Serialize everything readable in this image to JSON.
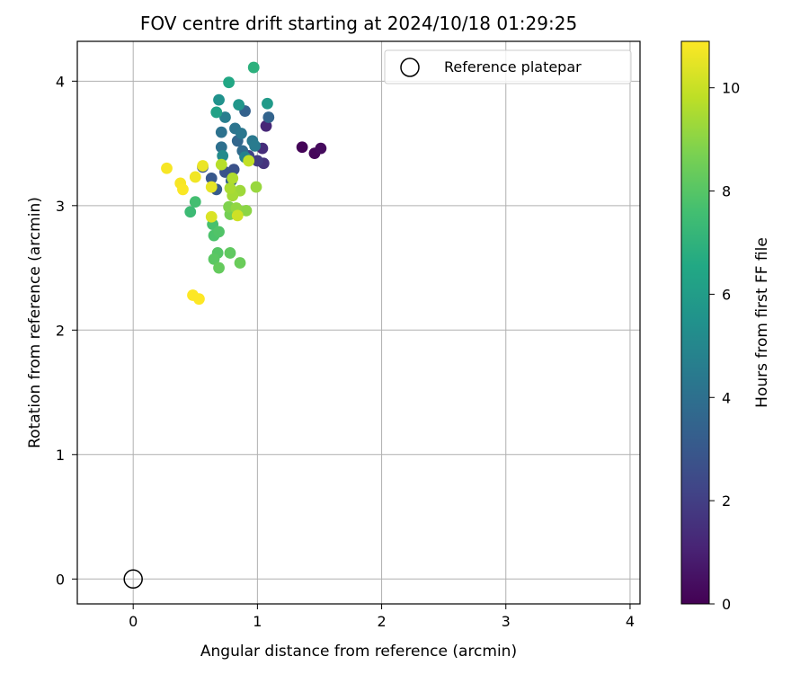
{
  "chart_data": {
    "type": "scatter",
    "title": "FOV centre drift starting at 2024/10/18 01:29:25",
    "xlabel": "Angular distance from reference (arcmin)",
    "ylabel": "Rotation from reference (arcmin)",
    "xlim": [
      -0.45,
      4.08
    ],
    "ylim": [
      -0.2,
      4.32
    ],
    "xticks": [
      0,
      1,
      2,
      3,
      4
    ],
    "yticks": [
      0,
      1,
      2,
      3,
      4
    ],
    "grid": true,
    "legend": {
      "placement": "top-right",
      "entries": [
        "Reference platepar"
      ]
    },
    "reference_point": {
      "x": 0,
      "y": 0,
      "marker": "open-circle"
    },
    "colorbar": {
      "label": "Hours from first FF file",
      "colormap": "viridis",
      "range": [
        0,
        10.9
      ],
      "ticks": [
        0,
        2,
        4,
        6,
        8,
        10
      ]
    },
    "series": [
      {
        "points": [
          {
            "x": 1.36,
            "y": 3.47,
            "t": 0.1
          },
          {
            "x": 1.46,
            "y": 3.42,
            "t": 0.2
          },
          {
            "x": 1.51,
            "y": 3.46,
            "t": 0.3
          },
          {
            "x": 1.07,
            "y": 3.64,
            "t": 1.2
          },
          {
            "x": 1.04,
            "y": 3.46,
            "t": 1.4
          },
          {
            "x": 1.05,
            "y": 3.34,
            "t": 1.6
          },
          {
            "x": 1.0,
            "y": 3.36,
            "t": 1.9
          },
          {
            "x": 0.93,
            "y": 3.4,
            "t": 2.2
          },
          {
            "x": 0.81,
            "y": 3.29,
            "t": 2.7
          },
          {
            "x": 0.74,
            "y": 3.27,
            "t": 2.8
          },
          {
            "x": 0.56,
            "y": 3.31,
            "t": 2.9
          },
          {
            "x": 0.63,
            "y": 3.22,
            "t": 3.0
          },
          {
            "x": 0.67,
            "y": 3.13,
            "t": 3.1
          },
          {
            "x": 0.79,
            "y": 3.2,
            "t": 3.3
          },
          {
            "x": 0.9,
            "y": 3.76,
            "t": 3.4
          },
          {
            "x": 1.09,
            "y": 3.71,
            "t": 3.5
          },
          {
            "x": 0.84,
            "y": 3.52,
            "t": 3.6
          },
          {
            "x": 0.88,
            "y": 3.44,
            "t": 3.8
          },
          {
            "x": 0.71,
            "y": 3.47,
            "t": 4.0
          },
          {
            "x": 0.71,
            "y": 3.59,
            "t": 4.1
          },
          {
            "x": 0.82,
            "y": 3.62,
            "t": 4.2
          },
          {
            "x": 0.87,
            "y": 3.58,
            "t": 4.3
          },
          {
            "x": 0.96,
            "y": 3.52,
            "t": 4.4
          },
          {
            "x": 0.98,
            "y": 3.48,
            "t": 4.5
          },
          {
            "x": 0.74,
            "y": 3.71,
            "t": 4.6
          },
          {
            "x": 0.9,
            "y": 3.39,
            "t": 4.8
          },
          {
            "x": 0.72,
            "y": 3.4,
            "t": 5.2
          },
          {
            "x": 0.69,
            "y": 3.85,
            "t": 5.5
          },
          {
            "x": 0.85,
            "y": 3.81,
            "t": 5.7
          },
          {
            "x": 1.08,
            "y": 3.82,
            "t": 5.9
          },
          {
            "x": 0.67,
            "y": 3.75,
            "t": 6.2
          },
          {
            "x": 0.77,
            "y": 3.99,
            "t": 6.5
          },
          {
            "x": 0.97,
            "y": 4.11,
            "t": 6.9
          },
          {
            "x": 0.46,
            "y": 2.95,
            "t": 7.4
          },
          {
            "x": 0.5,
            "y": 3.03,
            "t": 7.6
          },
          {
            "x": 0.64,
            "y": 2.85,
            "t": 7.7
          },
          {
            "x": 0.65,
            "y": 2.76,
            "t": 7.8
          },
          {
            "x": 0.69,
            "y": 2.79,
            "t": 7.9
          },
          {
            "x": 0.68,
            "y": 2.62,
            "t": 8.0
          },
          {
            "x": 0.65,
            "y": 2.57,
            "t": 8.1
          },
          {
            "x": 0.78,
            "y": 2.62,
            "t": 8.2
          },
          {
            "x": 0.69,
            "y": 2.5,
            "t": 8.3
          },
          {
            "x": 0.86,
            "y": 2.54,
            "t": 8.4
          },
          {
            "x": 0.78,
            "y": 2.93,
            "t": 8.6
          },
          {
            "x": 0.77,
            "y": 2.99,
            "t": 8.8
          },
          {
            "x": 0.85,
            "y": 2.96,
            "t": 8.9
          },
          {
            "x": 0.91,
            "y": 2.96,
            "t": 9.0
          },
          {
            "x": 0.83,
            "y": 2.98,
            "t": 9.1
          },
          {
            "x": 0.99,
            "y": 3.15,
            "t": 9.2
          },
          {
            "x": 0.86,
            "y": 3.12,
            "t": 9.3
          },
          {
            "x": 0.8,
            "y": 3.08,
            "t": 9.4
          },
          {
            "x": 0.78,
            "y": 3.14,
            "t": 9.5
          },
          {
            "x": 0.8,
            "y": 3.22,
            "t": 9.6
          },
          {
            "x": 0.71,
            "y": 3.33,
            "t": 9.7
          },
          {
            "x": 0.93,
            "y": 3.36,
            "t": 9.9
          },
          {
            "x": 0.84,
            "y": 2.92,
            "t": 10.1
          },
          {
            "x": 0.63,
            "y": 2.91,
            "t": 10.3
          },
          {
            "x": 0.63,
            "y": 3.15,
            "t": 10.5
          },
          {
            "x": 0.56,
            "y": 3.32,
            "t": 10.6
          },
          {
            "x": 0.5,
            "y": 3.23,
            "t": 10.7
          },
          {
            "x": 0.27,
            "y": 3.3,
            "t": 10.8
          },
          {
            "x": 0.38,
            "y": 3.18,
            "t": 10.8
          },
          {
            "x": 0.4,
            "y": 3.13,
            "t": 10.85
          },
          {
            "x": 0.48,
            "y": 2.28,
            "t": 10.9
          },
          {
            "x": 0.53,
            "y": 2.25,
            "t": 10.9
          }
        ]
      }
    ]
  }
}
